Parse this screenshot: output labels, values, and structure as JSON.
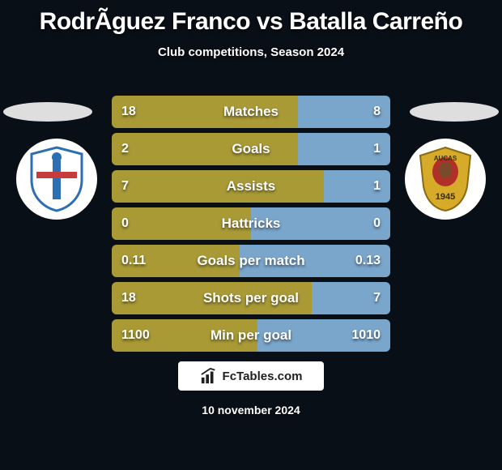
{
  "background_color": "#090f16",
  "text_color": "#ffffff",
  "title": "RodrÃ­guez Franco vs Batalla Carreño",
  "subtitle": "Club competitions, Season 2024",
  "ellipse_color": "#dedede",
  "crest_bg": "#ffffff",
  "crest_left": {
    "primary": "#2d6fb3",
    "secondary": "#c63b3b",
    "tertiary": "#ffffff"
  },
  "crest_right": {
    "shield": "#d7ab2a",
    "badge": "#b03028",
    "year": "1945",
    "name": "AUCAS"
  },
  "bar_colors": {
    "left": "#a99a36",
    "right": "#7aa6cc",
    "track": "#3e3720"
  },
  "rows": [
    {
      "label": "Matches",
      "left_val": "18",
      "right_val": "8",
      "left_w": 230,
      "right_w": 114
    },
    {
      "label": "Goals",
      "left_val": "2",
      "right_val": "1",
      "left_w": 230,
      "right_w": 114
    },
    {
      "label": "Assists",
      "left_val": "7",
      "right_val": "1",
      "left_w": 262,
      "right_w": 82
    },
    {
      "label": "Hattricks",
      "left_val": "0",
      "right_val": "0",
      "left_w": 172,
      "right_w": 172
    },
    {
      "label": "Goals per match",
      "left_val": "0.11",
      "right_val": "0.13",
      "left_w": 158,
      "right_w": 186
    },
    {
      "label": "Shots per goal",
      "left_val": "18",
      "right_val": "7",
      "left_w": 247,
      "right_w": 97
    },
    {
      "label": "Min per goal",
      "left_val": "1100",
      "right_val": "1010",
      "left_w": 180,
      "right_w": 164
    }
  ],
  "footer": {
    "bg": "#ffffff",
    "text": "FcTables.com",
    "icon_color": "#1f1f1f"
  },
  "date": "10 november 2024"
}
